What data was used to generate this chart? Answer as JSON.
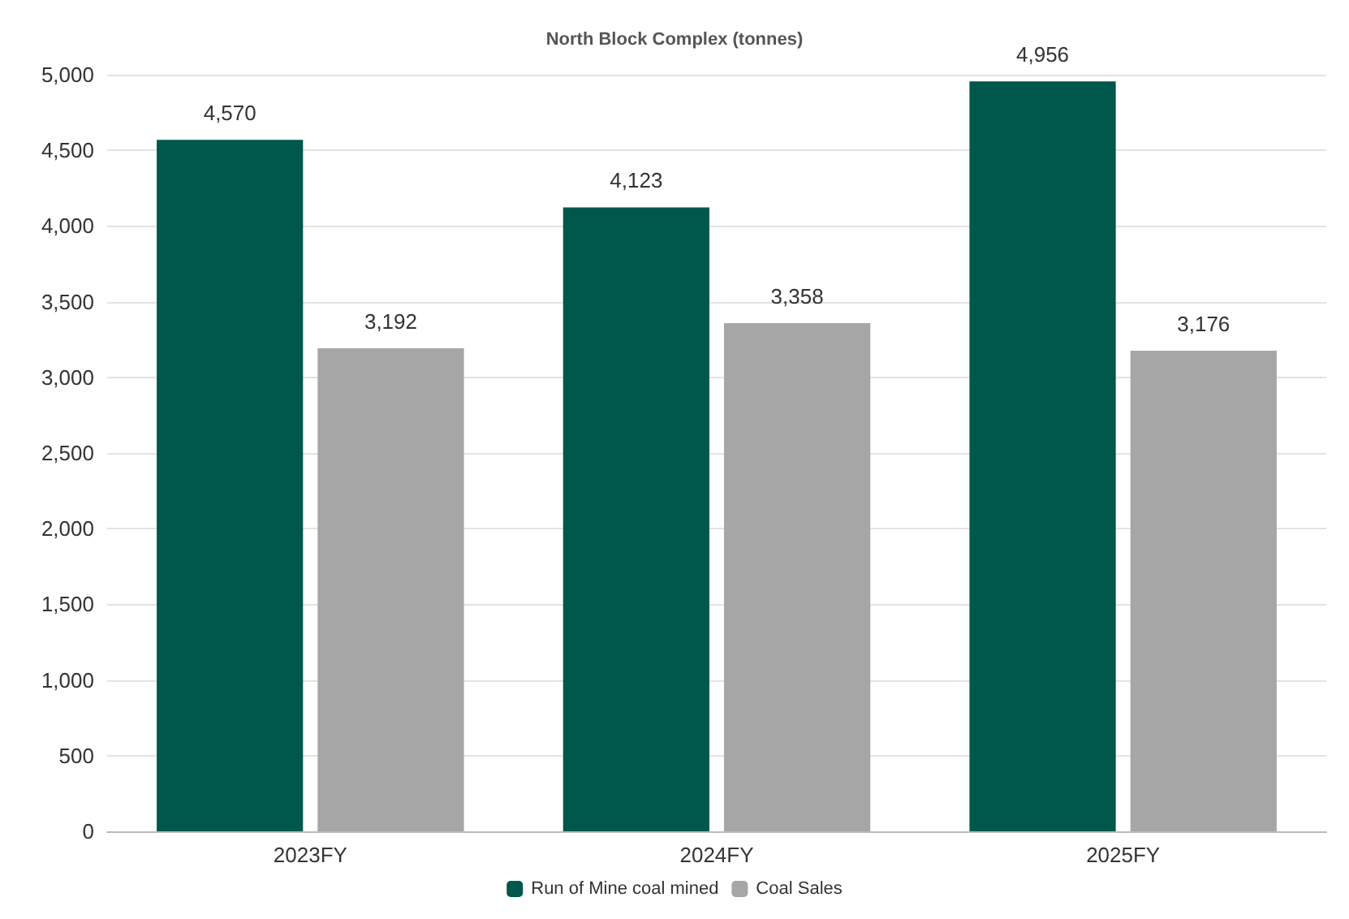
{
  "chart_data": {
    "type": "bar",
    "title": "North Block Complex (tonnes)",
    "categories": [
      "2023FY",
      "2024FY",
      "2025FY"
    ],
    "series": [
      {
        "name": "Run of Mine coal mined",
        "color": "#00574b",
        "values": [
          4570,
          4123,
          4956
        ],
        "value_labels": [
          "4,570",
          "4,123",
          "4,956"
        ]
      },
      {
        "name": "Coal Sales",
        "color": "#a6a6a6",
        "values": [
          3192,
          3358,
          3176
        ],
        "value_labels": [
          "3,192",
          "3,358",
          "3,176"
        ]
      }
    ],
    "ylim": [
      0,
      5000
    ],
    "yticks": [
      0,
      500,
      {
        "value": 1000,
        "label": "1,000"
      },
      {
        "value": 1500,
        "label": "1,500"
      },
      {
        "value": 2000,
        "label": "2,000"
      },
      {
        "value": 2500,
        "label": "2,500"
      },
      {
        "value": 3000,
        "label": "3,000"
      },
      {
        "value": 3500,
        "label": "3,500"
      },
      {
        "value": 4000,
        "label": "4,000"
      },
      {
        "value": 4500,
        "label": "4,500"
      },
      {
        "value": 5000,
        "label": "5,000"
      }
    ],
    "grid": "y",
    "legend": "bottom"
  }
}
